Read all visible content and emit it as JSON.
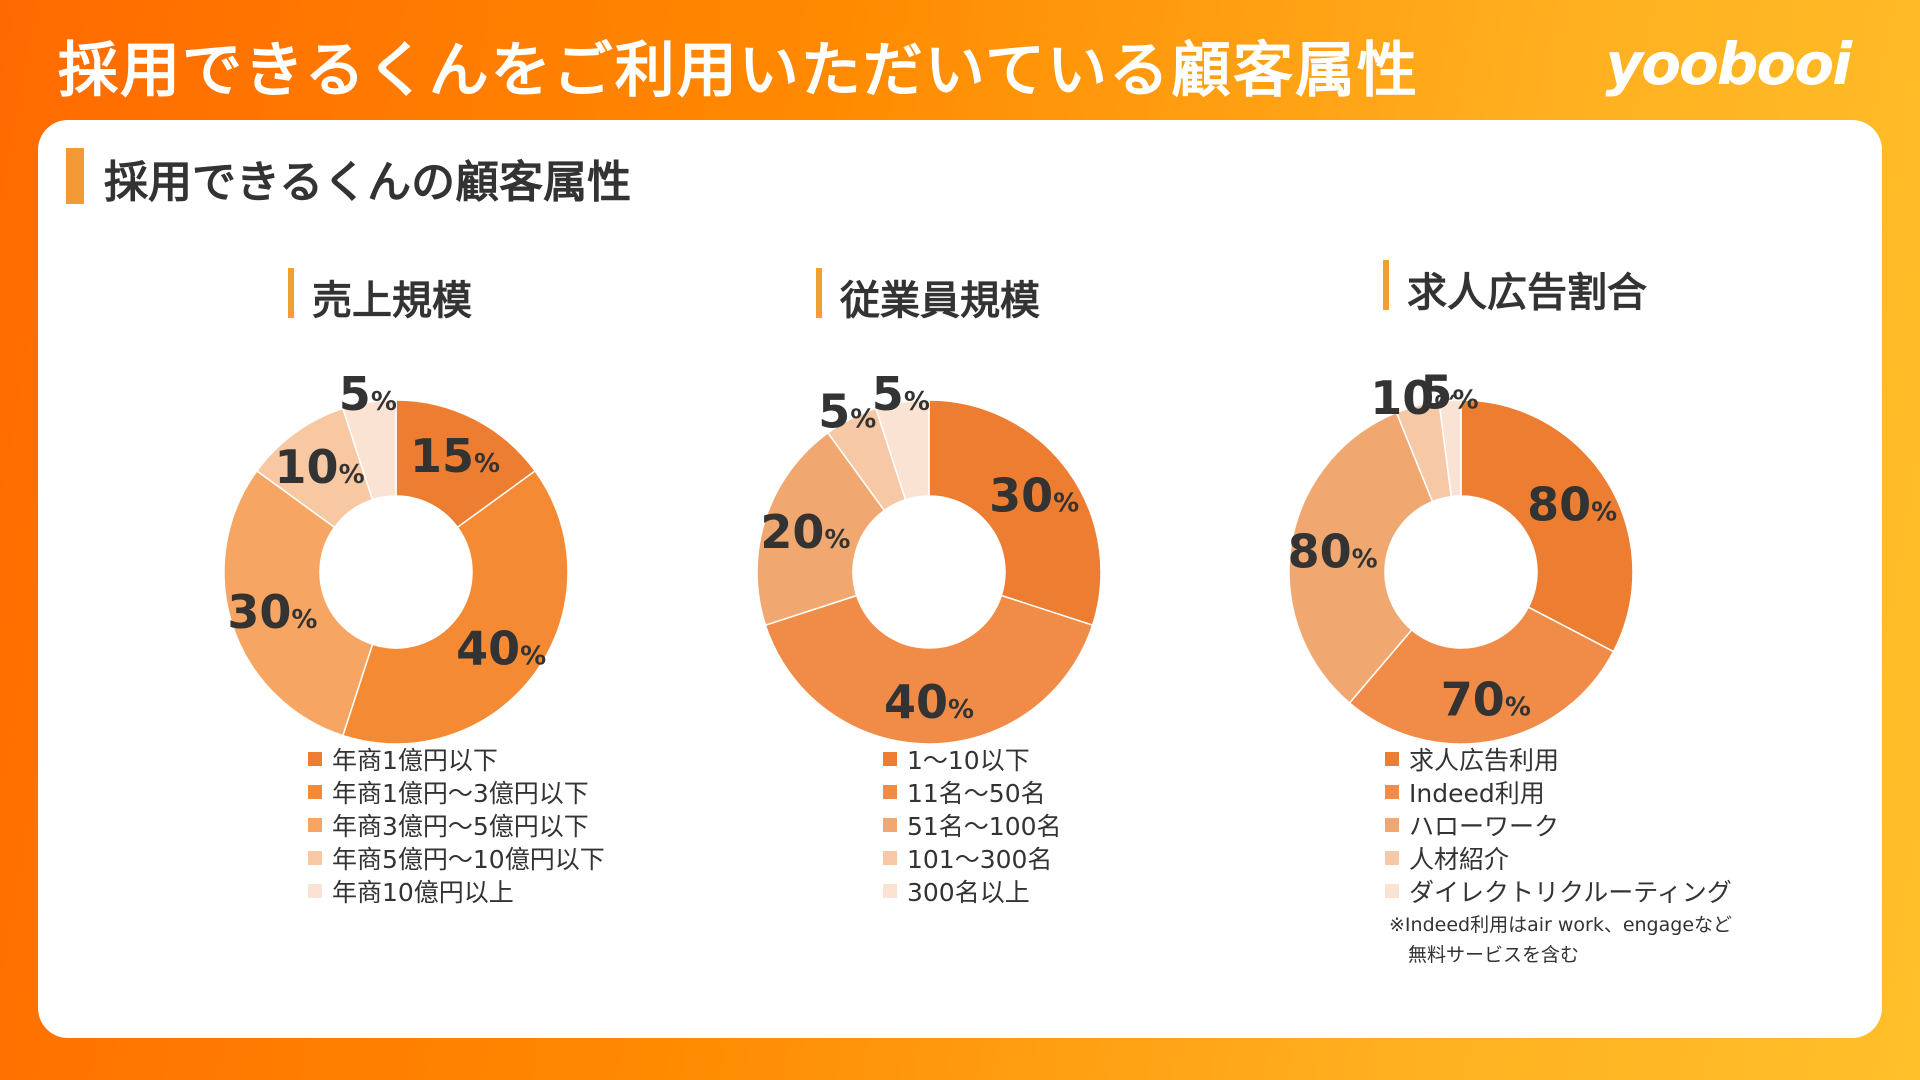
{
  "header": {
    "title": "採用できるくんをご利用いただいている顧客属性",
    "logo_text": "yoobooi"
  },
  "panel": {
    "section_title": "採用できるくんの顧客属性"
  },
  "colors": {
    "accent": "#f29a36",
    "background_start": "#ff6a00",
    "background_end": "#ffc02a"
  },
  "chart_data": [
    {
      "type": "pie",
      "title": "売上規模",
      "percent_suffix": "%",
      "categories": [
        "年商1億円以下",
        "年商1億円～3億円以下",
        "年商3億円～5億円以下",
        "年商5億円～10億円以下",
        "年商10億円以上"
      ],
      "values": [
        15,
        40,
        30,
        10,
        5
      ],
      "colors": [
        "#ec7d31",
        "#f58a34",
        "#f7a563",
        "#f8c8a3",
        "#fbe3d3"
      ],
      "legend": "bottom"
    },
    {
      "type": "pie",
      "title": "従業員規模",
      "percent_suffix": "%",
      "categories": [
        "1～10以下",
        "11名～50名",
        "51名～100名",
        "101～300名",
        "300名以上"
      ],
      "values": [
        30,
        40,
        20,
        5,
        5
      ],
      "colors": [
        "#ec7d31",
        "#f08c47",
        "#f0a870",
        "#f7c8a5",
        "#fbe3d3"
      ],
      "legend": "bottom"
    },
    {
      "type": "pie",
      "title": "求人広告割合",
      "percent_suffix": "%",
      "categories": [
        "求人広告利用",
        "Indeed利用",
        "ハローワーク",
        "人材紹介",
        "ダイレクトリクルーティング"
      ],
      "values": [
        80,
        70,
        80,
        10,
        5
      ],
      "colors": [
        "#ec7d31",
        "#f08c47",
        "#f0a870",
        "#f7c8a5",
        "#fbe3d3"
      ],
      "legend": "bottom",
      "note": "※Indeed利用はair work、engageなど\n　無料サービスを含む"
    }
  ]
}
